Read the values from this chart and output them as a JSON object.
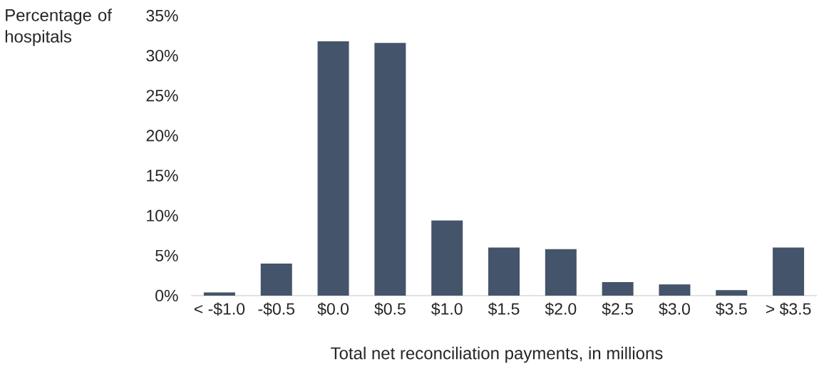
{
  "chart_data": {
    "type": "bar",
    "xlabel": "Total net reconciliation payments, in millions",
    "ylabel": "Percentage of hospitals",
    "categories": [
      "< -$1.0",
      "-$0.5",
      "$0.0",
      "$0.5",
      "$1.0",
      "$1.5",
      "$2.0",
      "$2.5",
      "$3.0",
      "$3.5",
      "> $3.5"
    ],
    "values": [
      0.4,
      4.0,
      31.8,
      31.6,
      9.4,
      6.0,
      5.8,
      1.7,
      1.4,
      0.7,
      6.0
    ],
    "color": "#44546a",
    "ylim": [
      0,
      35
    ],
    "yticks": [
      {
        "value": 0,
        "label": "0%"
      },
      {
        "value": 5,
        "label": "5%"
      },
      {
        "value": 10,
        "label": "10%"
      },
      {
        "value": 15,
        "label": "15%"
      },
      {
        "value": 20,
        "label": "20%"
      },
      {
        "value": 25,
        "label": "25%"
      },
      {
        "value": 30,
        "label": "30%"
      },
      {
        "value": 35,
        "label": "35%"
      }
    ],
    "grid": false
  }
}
